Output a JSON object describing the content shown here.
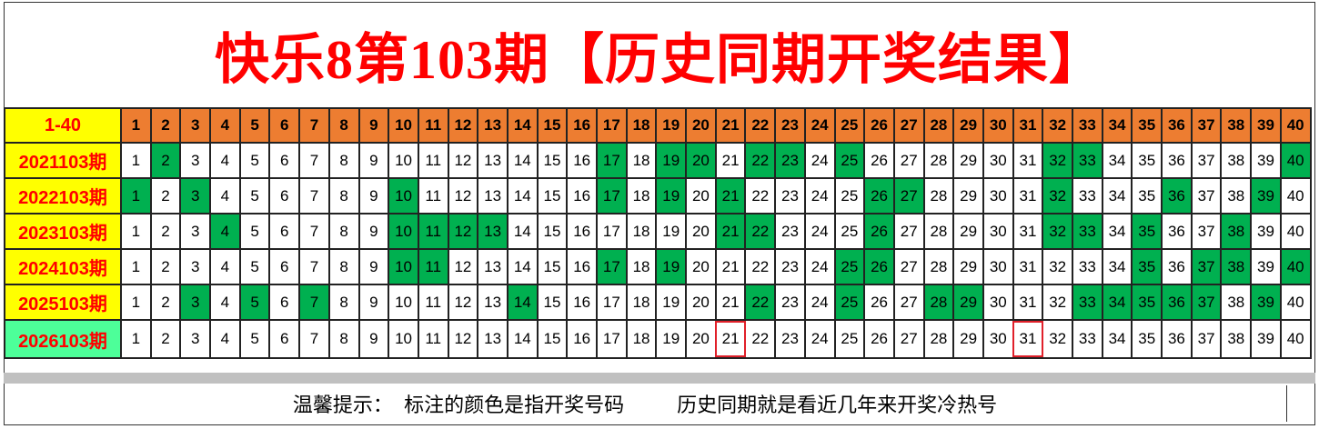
{
  "title": "快乐8第103期【历史同期开奖结果】",
  "header_label": "1-40",
  "numbers": [
    1,
    2,
    3,
    4,
    5,
    6,
    7,
    8,
    9,
    10,
    11,
    12,
    13,
    14,
    15,
    16,
    17,
    18,
    19,
    20,
    21,
    22,
    23,
    24,
    25,
    26,
    27,
    28,
    29,
    30,
    31,
    32,
    33,
    34,
    35,
    36,
    37,
    38,
    39,
    40
  ],
  "rows": [
    {
      "label": "2021103期",
      "hits": [
        2,
        17,
        19,
        20,
        22,
        23,
        25,
        32,
        33,
        40
      ]
    },
    {
      "label": "2022103期",
      "hits": [
        1,
        3,
        10,
        17,
        19,
        21,
        26,
        27,
        32,
        36,
        39
      ]
    },
    {
      "label": "2023103期",
      "hits": [
        4,
        10,
        11,
        12,
        13,
        21,
        22,
        26,
        32,
        33,
        35,
        38
      ]
    },
    {
      "label": "2024103期",
      "hits": [
        10,
        11,
        17,
        19,
        25,
        26,
        35,
        37,
        38,
        40
      ]
    },
    {
      "label": "2025103期",
      "hits": [
        3,
        5,
        7,
        14,
        22,
        25,
        28,
        29,
        33,
        34,
        35,
        36,
        37,
        39
      ]
    },
    {
      "label": "2026103期",
      "hits": [],
      "marked": [
        21,
        31
      ],
      "current": true
    }
  ],
  "colors": {
    "hit": "#00b050",
    "header": "#ed7d31",
    "label_bg": "#ffff00",
    "current_label_bg": "#4dff99",
    "title": "#ff0000",
    "mark": "#e0202a"
  },
  "footer": {
    "tip": "温馨提示：  标注的颜色是指开奖号码",
    "note": "历史同期就是看近几年来开奖冷热号"
  }
}
